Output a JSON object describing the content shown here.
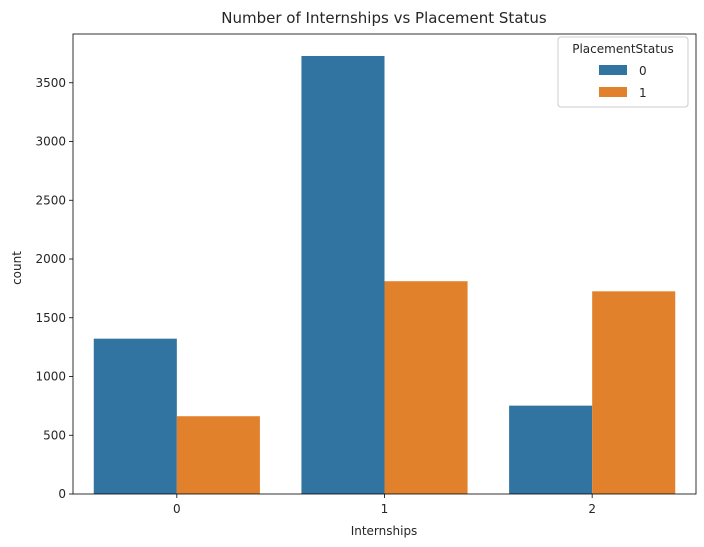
{
  "chart_data": {
    "type": "bar",
    "title": "Number of Internships vs Placement Status",
    "xlabel": "Internships",
    "ylabel": "count",
    "categories": [
      "0",
      "1",
      "2"
    ],
    "series": [
      {
        "name": "0",
        "color": "#3274a1",
        "values": [
          1322,
          3728,
          752
        ]
      },
      {
        "name": "1",
        "color": "#e1812c",
        "values": [
          662,
          1811,
          1725
        ]
      }
    ],
    "ylim": [
      0,
      3915
    ],
    "yticks": [
      0,
      500,
      1000,
      1500,
      2000,
      2500,
      3000,
      3500
    ],
    "legend": {
      "title": "PlacementStatus",
      "position": "top-right"
    },
    "grid": false
  }
}
